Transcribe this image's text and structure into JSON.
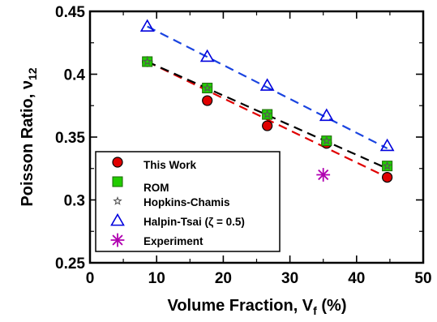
{
  "chart_data": {
    "type": "scatter",
    "xlabel": "Volume Fraction, V",
    "xlabel_sub": "f",
    "xlabel_suffix": " (%)",
    "ylabel": "Poisson Ratio, ν",
    "ylabel_sub": "12",
    "xlim": [
      0,
      50
    ],
    "ylim": [
      0.25,
      0.45
    ],
    "xticks": [
      0,
      10,
      20,
      30,
      40,
      50
    ],
    "xtick_labels": [
      "0",
      "10",
      "20",
      "30",
      "40",
      "50"
    ],
    "yticks": [
      0.25,
      0.3,
      0.35,
      0.4,
      0.45
    ],
    "ytick_labels": [
      "0.25",
      "0.3",
      "0.35",
      "0.4",
      "0.45"
    ],
    "grid": false,
    "legend_position": "bottom-left",
    "series": [
      {
        "name": "This Work",
        "marker": "circle",
        "color": "#e00000",
        "line_color": "#e00000",
        "x": [
          8.6,
          17.6,
          26.6,
          35.5,
          44.6
        ],
        "y": [
          0.41,
          0.379,
          0.359,
          0.345,
          0.318
        ],
        "fit": [
          [
            8.6,
            0.41
          ],
          [
            44.6,
            0.318
          ]
        ]
      },
      {
        "name": "ROM",
        "marker": "square",
        "color": "#22cc00",
        "line_color": "#000000",
        "x": [
          8.6,
          17.6,
          26.6,
          35.5,
          44.6
        ],
        "y": [
          0.41,
          0.389,
          0.368,
          0.347,
          0.327
        ],
        "fit": [
          [
            8.6,
            0.41
          ],
          [
            44.6,
            0.325
          ]
        ]
      },
      {
        "name": "Hopkins-Chamis",
        "marker": "star",
        "color": "#555555",
        "x": [
          8.6,
          17.6,
          26.6,
          35.5,
          44.6
        ],
        "y": [
          0.41,
          0.389,
          0.368,
          0.347,
          0.327
        ]
      },
      {
        "name": "Halpin-Tsai (ζ = 0.5)",
        "marker": "triangle",
        "color": "#0000dd",
        "line_color": "#1a44e0",
        "x": [
          8.6,
          17.6,
          26.6,
          35.5,
          44.6
        ],
        "y": [
          0.438,
          0.414,
          0.391,
          0.367,
          0.343
        ],
        "fit": [
          [
            8.6,
            0.438
          ],
          [
            44.6,
            0.341
          ]
        ]
      },
      {
        "name": "Experiment",
        "marker": "asterisk",
        "color": "#b000b0",
        "x": [
          35
        ],
        "y": [
          0.32
        ]
      }
    ]
  }
}
